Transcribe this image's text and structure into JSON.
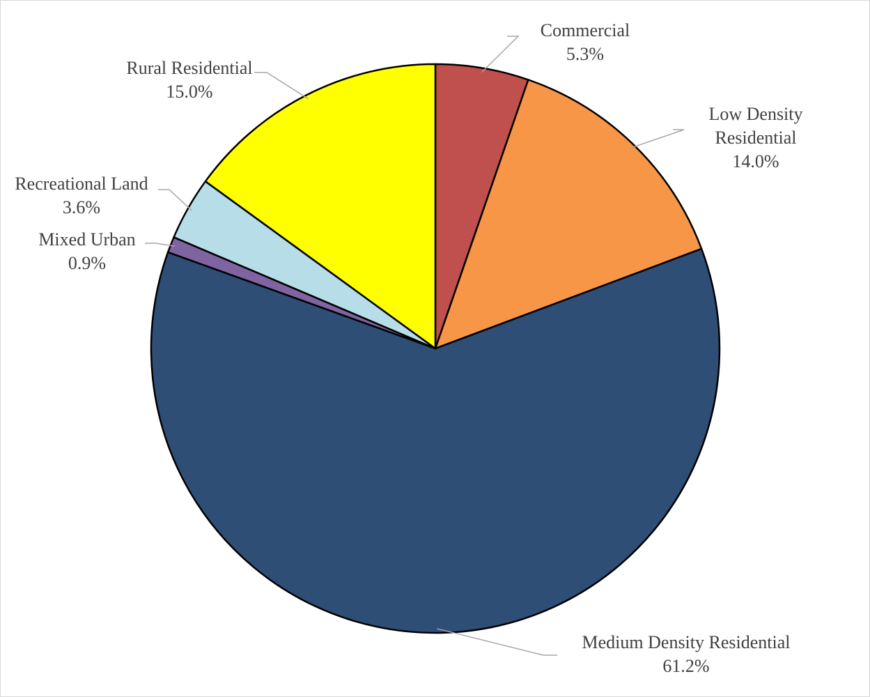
{
  "chart_data": {
    "type": "pie",
    "title": "",
    "legend": "none",
    "slices": [
      {
        "label": "Commercial",
        "label_lines": [
          "Commercial"
        ],
        "value": 5.3,
        "value_label": "5.3%",
        "color": "#C0504D"
      },
      {
        "label": "Low Density Residential",
        "label_lines": [
          "Low Density",
          "Residential"
        ],
        "value": 14.0,
        "value_label": "14.0%",
        "color": "#F79646"
      },
      {
        "label": "Medium Density Residential",
        "label_lines": [
          "Medium Density Residential"
        ],
        "value": 61.2,
        "value_label": "61.2%",
        "color": "#2E4E76"
      },
      {
        "label": "Mixed Urban",
        "label_lines": [
          "Mixed Urban"
        ],
        "value": 0.9,
        "value_label": "0.9%",
        "color": "#8064A2"
      },
      {
        "label": "Recreational Land",
        "label_lines": [
          "Recreational Land"
        ],
        "value": 3.6,
        "value_label": "3.6%",
        "color": "#B7DDE8"
      },
      {
        "label": "Rural Residential",
        "label_lines": [
          "Rural Residential"
        ],
        "value": 15.0,
        "value_label": "15.0%",
        "color": "#FFFF00"
      }
    ]
  }
}
